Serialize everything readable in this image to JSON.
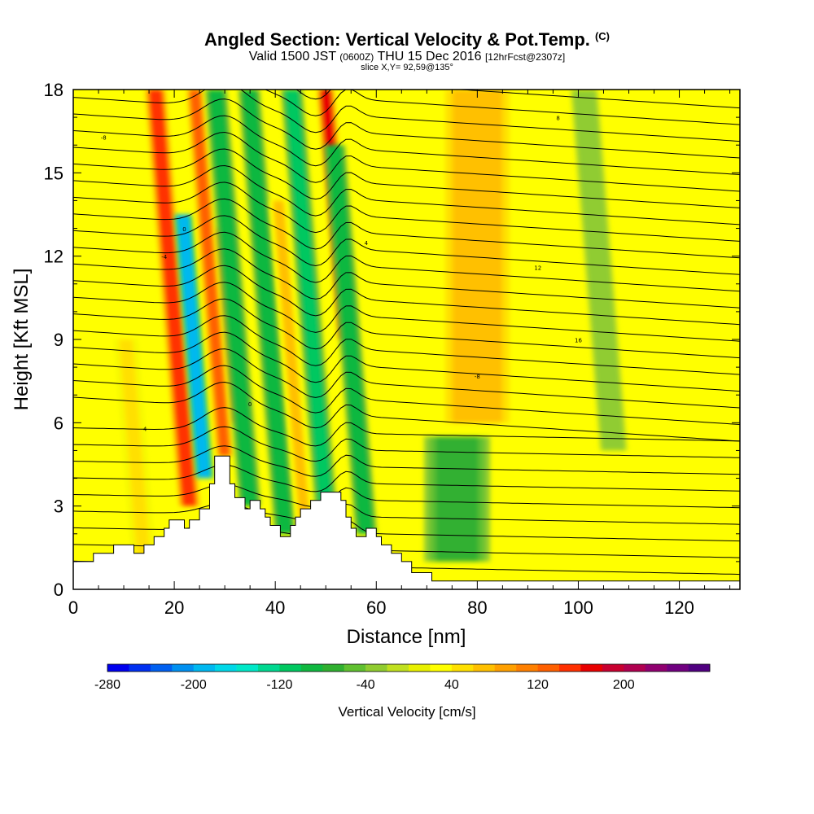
{
  "chart_data": {
    "type": "heatmap",
    "title": "Angled Section: Vertical Velocity & Pot.Temp.",
    "title_unit": "(C)",
    "subtitle": {
      "valid": "Valid 1500 JST",
      "utc": "(0600Z)",
      "date": "THU 15 Dec 2016",
      "forecast": "[12hrFcst@2307z]"
    },
    "slice_label": "slice X,Y= 92,59@135°",
    "xlabel": "Distance [nm]",
    "ylabel": "Height [Kft MSL]",
    "xlim": [
      0,
      132
    ],
    "ylim": [
      0,
      18
    ],
    "x_ticks": [
      0,
      20,
      40,
      60,
      80,
      100,
      120
    ],
    "y_ticks": [
      0,
      3,
      6,
      9,
      12,
      15,
      18
    ],
    "x_tick_labels": [
      "0",
      "20",
      "40",
      "60",
      "80",
      "100",
      "120"
    ],
    "y_tick_labels": [
      "0",
      "3",
      "6",
      "9",
      "12",
      "15",
      "18"
    ],
    "colorbar": {
      "label": "Vertical Velocity [cm/s]",
      "min": -280,
      "max": 280,
      "step": 20,
      "tick_values": [
        -280,
        -200,
        -120,
        -40,
        40,
        120,
        200
      ],
      "tick_labels": [
        "-280",
        "-200",
        "-120",
        "-40",
        "40",
        "120",
        "200"
      ],
      "colors": [
        "#0000ee",
        "#0030f0",
        "#0060f0",
        "#0090f0",
        "#00b8f0",
        "#00d8e8",
        "#00e8c8",
        "#00d890",
        "#00c860",
        "#10b840",
        "#30b030",
        "#60c030",
        "#90cc30",
        "#c0e020",
        "#e8f000",
        "#ffff00",
        "#ffe000",
        "#ffc000",
        "#ffa000",
        "#ff8000",
        "#ff6000",
        "#ff3000",
        "#e80000",
        "#c80030",
        "#b00050",
        "#900070",
        "#700080",
        "#500080"
      ]
    },
    "velocity_features": [
      {
        "kind": "updraft",
        "x": 14,
        "w": 2.0,
        "z0": 1.0,
        "z1": 9.0,
        "w_cms": 40
      },
      {
        "kind": "updraft",
        "x": 23,
        "w": 2.0,
        "z0": 3.0,
        "z1": 18.0,
        "w_cms": 140
      },
      {
        "kind": "downdraft",
        "x": 26,
        "w": 1.6,
        "z0": 4.0,
        "z1": 13.5,
        "w_cms": -200
      },
      {
        "kind": "updraft",
        "x": 30,
        "w": 1.6,
        "z0": 4.8,
        "z1": 18.0,
        "w_cms": 120
      },
      {
        "kind": "updraft",
        "x": 33,
        "w": 1.6,
        "z0": 6.0,
        "z1": 13.0,
        "w_cms": 150
      },
      {
        "kind": "downdraft",
        "x": 35,
        "w": 2.0,
        "z0": 3.0,
        "z1": 18.0,
        "w_cms": -100
      },
      {
        "kind": "downdraft",
        "x": 42,
        "w": 2.0,
        "z0": 2.0,
        "z1": 18.0,
        "w_cms": -100
      },
      {
        "kind": "updraft",
        "x": 46,
        "w": 1.6,
        "z0": 2.0,
        "z1": 14.0,
        "w_cms": 60
      },
      {
        "kind": "downdraft",
        "x": 50,
        "w": 2.0,
        "z0": 3.0,
        "z1": 18.0,
        "w_cms": -110
      },
      {
        "kind": "updraft",
        "x": 54,
        "w": 1.6,
        "z0": 9.0,
        "z1": 18.0,
        "w_cms": 160
      },
      {
        "kind": "downdraft",
        "x": 58,
        "w": 2.0,
        "z0": 2.0,
        "z1": 16.0,
        "w_cms": -100
      },
      {
        "kind": "updraft",
        "x": 80,
        "w": 7.0,
        "z0": 6.0,
        "z1": 18.0,
        "w_cms": 70
      },
      {
        "kind": "downdraft",
        "x": 76,
        "w": 6.0,
        "z0": 1.0,
        "z1": 5.5,
        "w_cms": -80
      },
      {
        "kind": "downdraft",
        "x": 107,
        "w": 2.5,
        "z0": 5.0,
        "z1": 18.0,
        "w_cms": -40
      }
    ],
    "contour_labels": [
      "-8",
      "-4",
      "0",
      "4",
      "8",
      "12",
      "16"
    ],
    "terrain": [
      [
        0,
        1.0
      ],
      [
        4,
        1.0
      ],
      [
        4,
        1.3
      ],
      [
        8,
        1.3
      ],
      [
        8,
        1.6
      ],
      [
        12,
        1.6
      ],
      [
        12,
        1.3
      ],
      [
        14,
        1.3
      ],
      [
        14,
        1.6
      ],
      [
        16,
        1.6
      ],
      [
        16,
        1.9
      ],
      [
        18,
        1.9
      ],
      [
        18,
        2.2
      ],
      [
        19,
        2.2
      ],
      [
        19,
        2.5
      ],
      [
        22,
        2.5
      ],
      [
        22,
        2.2
      ],
      [
        23,
        2.2
      ],
      [
        23,
        2.5
      ],
      [
        25,
        2.5
      ],
      [
        25,
        2.9
      ],
      [
        27,
        2.9
      ],
      [
        27,
        3.8
      ],
      [
        28,
        3.8
      ],
      [
        28,
        4.8
      ],
      [
        31,
        4.8
      ],
      [
        31,
        3.8
      ],
      [
        32,
        3.8
      ],
      [
        32,
        3.3
      ],
      [
        34,
        3.3
      ],
      [
        34,
        2.9
      ],
      [
        35,
        2.9
      ],
      [
        35,
        3.2
      ],
      [
        37,
        3.2
      ],
      [
        37,
        2.9
      ],
      [
        38,
        2.9
      ],
      [
        38,
        2.6
      ],
      [
        39,
        2.6
      ],
      [
        39,
        2.3
      ],
      [
        41,
        2.3
      ],
      [
        41,
        1.9
      ],
      [
        43,
        1.9
      ],
      [
        43,
        2.3
      ],
      [
        44,
        2.3
      ],
      [
        44,
        2.6
      ],
      [
        45,
        2.6
      ],
      [
        45,
        2.9
      ],
      [
        47,
        2.9
      ],
      [
        47,
        3.2
      ],
      [
        49,
        3.2
      ],
      [
        49,
        3.5
      ],
      [
        53,
        3.5
      ],
      [
        53,
        3.2
      ],
      [
        54,
        3.2
      ],
      [
        54,
        2.6
      ],
      [
        55,
        2.6
      ],
      [
        55,
        2.2
      ],
      [
        56,
        2.2
      ],
      [
        56,
        1.9
      ],
      [
        58,
        1.9
      ],
      [
        58,
        2.2
      ],
      [
        60,
        2.2
      ],
      [
        60,
        1.9
      ],
      [
        61,
        1.9
      ],
      [
        61,
        1.6
      ],
      [
        63,
        1.6
      ],
      [
        63,
        1.3
      ],
      [
        65,
        1.3
      ],
      [
        65,
        1.0
      ],
      [
        67,
        1.0
      ],
      [
        67,
        0.6
      ],
      [
        71,
        0.6
      ],
      [
        71,
        0.3
      ],
      [
        132,
        0.3
      ]
    ]
  }
}
